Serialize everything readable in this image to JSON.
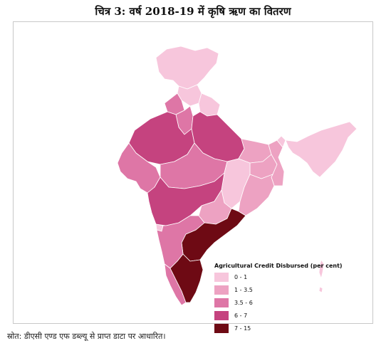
{
  "title": "चित्र 3: वर्ष 2018-19 में कृषि ऋण का वितरण",
  "legend": {
    "title": "Agricultural Credit Disbursed (per cent)",
    "items": [
      {
        "label": "0 - 1",
        "color": "#f7c6dc"
      },
      {
        "label": "1 - 3.5",
        "color": "#eda2c2"
      },
      {
        "label": "3.5 - 6",
        "color": "#de76a6"
      },
      {
        "label": "6 - 7",
        "color": "#c5437f"
      },
      {
        "label": "7 - 15",
        "color": "#6e0a14"
      }
    ]
  },
  "regions": [
    {
      "name": "Jammu and Kashmir",
      "class": "0 - 1"
    },
    {
      "name": "Himachal Pradesh",
      "class": "0 - 1"
    },
    {
      "name": "Uttarakhand",
      "class": "0 - 1"
    },
    {
      "name": "Punjab",
      "class": "3.5 - 6"
    },
    {
      "name": "Haryana",
      "class": "3.5 - 6"
    },
    {
      "name": "Rajasthan",
      "class": "6 - 7"
    },
    {
      "name": "Uttar Pradesh",
      "class": "6 - 7"
    },
    {
      "name": "Bihar",
      "class": "1 - 3.5"
    },
    {
      "name": "Gujarat",
      "class": "3.5 - 6"
    },
    {
      "name": "Madhya Pradesh",
      "class": "3.5 - 6"
    },
    {
      "name": "Jharkhand",
      "class": "1 - 3.5"
    },
    {
      "name": "West Bengal",
      "class": "1 - 3.5"
    },
    {
      "name": "Chhattisgarh",
      "class": "0 - 1"
    },
    {
      "name": "Odisha",
      "class": "1 - 3.5"
    },
    {
      "name": "Maharashtra",
      "class": "6 - 7"
    },
    {
      "name": "Telangana",
      "class": "1 - 3.5"
    },
    {
      "name": "Andhra Pradesh",
      "class": "7 - 15"
    },
    {
      "name": "Karnataka",
      "class": "3.5 - 6"
    },
    {
      "name": "Goa",
      "class": "0 - 1"
    },
    {
      "name": "Kerala",
      "class": "3.5 - 6"
    },
    {
      "name": "Tamil Nadu",
      "class": "7 - 15"
    },
    {
      "name": "North-East States",
      "class": "0 - 1"
    },
    {
      "name": "Andaman and Nicobar Islands",
      "class": "0 - 1"
    }
  ],
  "source": "स्रोत: डीएसी एण्ड एफ डब्ल्यू से प्राप्त डाटा पर आधारित।"
}
